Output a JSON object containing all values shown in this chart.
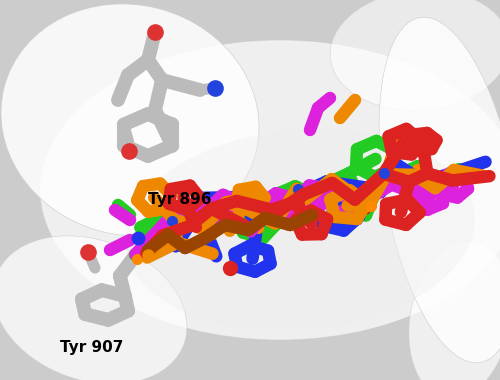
{
  "background_top": "#d8d8d8",
  "background_color": "#d0d0d0",
  "label_tyr896": "Tyr 896",
  "label_tyr907": "Tyr 907",
  "figsize": [
    5.0,
    3.8
  ],
  "dpi": 100,
  "compound_colors": {
    "green": "#22cc22",
    "blue": "#2233ee",
    "magenta": "#dd22dd",
    "orange": "#ee8800",
    "red": "#dd2222",
    "brown": "#884400",
    "gray": "#bbbbbb",
    "gray_dark": "#999999"
  }
}
